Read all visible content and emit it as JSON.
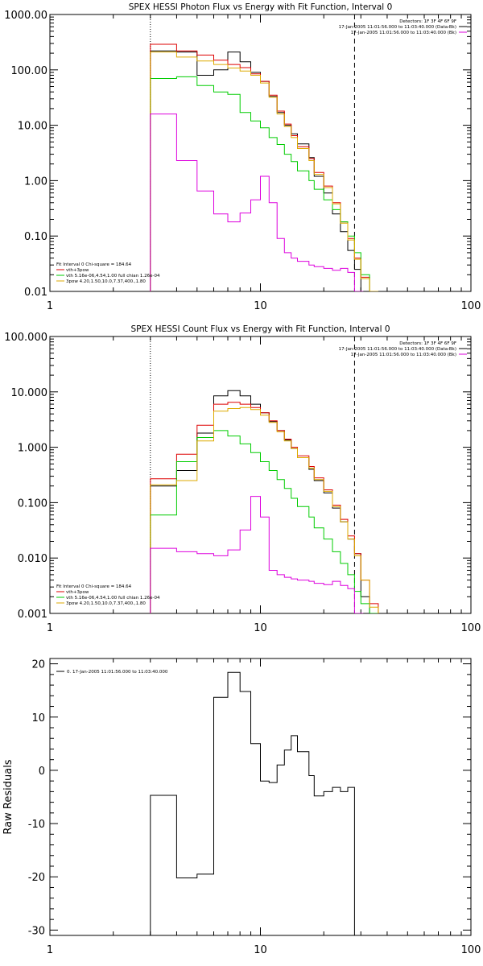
{
  "chart_data": [
    {
      "type": "line",
      "title": "SPEX HESSI Photon Flux vs Energy with Fit Function, Interval 0",
      "xlabel": "",
      "ylabel": "",
      "xscale": "log",
      "yscale": "log",
      "xlim": [
        1,
        100
      ],
      "ylim": [
        0.01,
        1000
      ],
      "xtick_labels": [
        "1",
        "10",
        "100"
      ],
      "ytick_labels": [
        "0.01",
        "0.10",
        "1.00",
        "10.00",
        "100.00",
        "1000.00"
      ],
      "header_text": [
        "Detectors: 1F 3F 4F 6F 9F",
        "17-Jan-2005 11:01:56.000 to 11:03:40.000 (Data-Bk)",
        "17-Jan-2005 11:01:56.000 to 11:03:40.000 (Bk)"
      ],
      "fit_text": "Fit Interval 0   Chi-square = 184.64",
      "legend": [
        "vth+3pow",
        "vth 5.16e-06,4.54,1.00  full chian 1.26e-04",
        "3pow 4.20,1.50,10.0,7.37,400.,1.80"
      ],
      "vlines": [
        {
          "x": 3,
          "style": "dotted"
        },
        {
          "x": 28,
          "style": "dashed"
        }
      ],
      "series": [
        {
          "name": "Data-Bk",
          "color": "#000000",
          "x": [
            3,
            4,
            5,
            6,
            7,
            8,
            9,
            10,
            11,
            12,
            13,
            14,
            15,
            17,
            18,
            20,
            22,
            24,
            26,
            28,
            30
          ],
          "values": [
            220,
            210,
            80,
            100,
            210,
            140,
            90,
            62,
            33,
            17,
            10,
            7.0,
            4.6,
            2.6,
            1.2,
            0.6,
            0.25,
            0.12,
            0.055,
            0.025,
            0.01
          ]
        },
        {
          "name": "vth+3pow",
          "color": "#dd0000",
          "x": [
            3,
            4,
            5,
            6,
            7,
            8,
            9,
            10,
            11,
            12,
            13,
            14,
            15,
            17,
            18,
            20,
            22,
            24,
            26,
            28,
            30,
            33
          ],
          "values": [
            290,
            220,
            185,
            150,
            125,
            110,
            85,
            62,
            35,
            18,
            10.5,
            6.5,
            4.1,
            2.5,
            1.4,
            0.8,
            0.4,
            0.18,
            0.09,
            0.04,
            0.018,
            0.01
          ]
        },
        {
          "name": "vth",
          "color": "#00cc00",
          "x": [
            3,
            4,
            5,
            6,
            7,
            8,
            9,
            10,
            11,
            12,
            13,
            14,
            15,
            17,
            18,
            20,
            22,
            24,
            26,
            28,
            30,
            33
          ],
          "values": [
            70,
            75,
            52,
            40,
            36,
            17,
            12,
            9,
            6,
            4.5,
            3.0,
            2.2,
            1.5,
            1.0,
            0.7,
            0.45,
            0.3,
            0.18,
            0.1,
            0.05,
            0.02,
            0.01
          ]
        },
        {
          "name": "3pow",
          "color": "#ddaa00",
          "x": [
            3,
            4,
            5,
            6,
            7,
            8,
            9,
            10,
            11,
            12,
            13,
            14,
            15,
            17,
            18,
            20,
            22,
            24,
            26,
            28,
            30,
            33
          ],
          "values": [
            210,
            170,
            145,
            125,
            108,
            95,
            80,
            58,
            32,
            16,
            9.5,
            6.0,
            3.8,
            2.3,
            1.3,
            0.75,
            0.38,
            0.17,
            0.085,
            0.038,
            0.017,
            0.01
          ]
        },
        {
          "name": "Bk",
          "color": "#dd00dd",
          "x": [
            3,
            4,
            5,
            6,
            7,
            8,
            9,
            10,
            11,
            12,
            13,
            14,
            15,
            17,
            18,
            20,
            22,
            24,
            26,
            28
          ],
          "values": [
            16,
            2.3,
            0.65,
            0.25,
            0.18,
            0.26,
            0.45,
            1.2,
            0.4,
            0.09,
            0.05,
            0.04,
            0.035,
            0.03,
            0.028,
            0.026,
            0.024,
            0.026,
            0.022,
            0.01
          ]
        }
      ]
    },
    {
      "type": "line",
      "title": "SPEX HESSI Count Flux vs Energy with Fit Function, Interval 0",
      "xlabel": "",
      "ylabel": "",
      "xscale": "log",
      "yscale": "log",
      "xlim": [
        1,
        100
      ],
      "ylim": [
        0.001,
        100
      ],
      "xtick_labels": [
        "1",
        "10",
        "100"
      ],
      "ytick_labels": [
        "0.001",
        "0.010",
        "0.100",
        "1.000",
        "10.000",
        "100.000"
      ],
      "header_text": [
        "Detectors: 1F 3F 4F 6F 9F",
        "17-Jan-2005 11:01:56.000 to 11:03:40.000 (Data-Bk)",
        "17-Jan-2005 11:01:56.000 to 11:03:40.000 (Bk)"
      ],
      "fit_text": "Fit Interval 0   Chi-square = 184.64",
      "legend": [
        "vth+3pow",
        "vth 5.16e-06,4.54,1.00  full chian 1.26e-04",
        "3pow 4.20,1.50,10.0,7.37,400.,1.80"
      ],
      "vlines": [
        {
          "x": 3,
          "style": "dotted"
        },
        {
          "x": 28,
          "style": "dashed"
        }
      ],
      "series": [
        {
          "name": "Data-Bk",
          "color": "#000000",
          "x": [
            3,
            4,
            5,
            6,
            7,
            8,
            9,
            10,
            11,
            12,
            13,
            14,
            15,
            17,
            18,
            20,
            22,
            24,
            26,
            28,
            30
          ],
          "values": [
            0.2,
            0.38,
            1.8,
            8.5,
            10.5,
            8.5,
            6.0,
            4.2,
            2.9,
            2.0,
            1.35,
            0.95,
            0.65,
            0.4,
            0.25,
            0.15,
            0.08,
            0.045,
            0.022,
            0.012,
            0.002
          ]
        },
        {
          "name": "vth+3pow",
          "color": "#dd0000",
          "x": [
            3,
            4,
            5,
            6,
            7,
            8,
            9,
            10,
            11,
            12,
            13,
            14,
            15,
            17,
            18,
            20,
            22,
            24,
            26,
            28,
            30,
            33
          ],
          "values": [
            0.27,
            0.75,
            2.5,
            6.0,
            6.5,
            6.0,
            5.2,
            4.2,
            3.0,
            2.0,
            1.4,
            1.0,
            0.7,
            0.45,
            0.28,
            0.17,
            0.09,
            0.05,
            0.025,
            0.012,
            0.004,
            0.0015
          ]
        },
        {
          "name": "vth",
          "color": "#00cc00",
          "x": [
            3,
            4,
            5,
            6,
            7,
            8,
            9,
            10,
            11,
            12,
            13,
            14,
            15,
            17,
            18,
            20,
            22,
            24,
            26,
            28,
            30,
            33
          ],
          "values": [
            0.06,
            0.55,
            1.5,
            2.0,
            1.6,
            1.15,
            0.8,
            0.55,
            0.38,
            0.26,
            0.18,
            0.12,
            0.085,
            0.055,
            0.035,
            0.022,
            0.013,
            0.008,
            0.005,
            0.0025,
            0.0015,
            0.001
          ]
        },
        {
          "name": "3pow",
          "color": "#ddaa00",
          "x": [
            3,
            4,
            5,
            6,
            7,
            8,
            9,
            10,
            11,
            12,
            13,
            14,
            15,
            17,
            18,
            20,
            22,
            24,
            26,
            28,
            30,
            33
          ],
          "values": [
            0.21,
            0.25,
            1.3,
            4.5,
            5.0,
            5.2,
            4.8,
            3.8,
            2.8,
            1.9,
            1.3,
            0.95,
            0.65,
            0.42,
            0.26,
            0.16,
            0.085,
            0.045,
            0.022,
            0.011,
            0.004,
            0.0013
          ]
        },
        {
          "name": "Bk",
          "color": "#dd00dd",
          "x": [
            3,
            4,
            5,
            6,
            7,
            8,
            9,
            10,
            11,
            12,
            13,
            14,
            15,
            17,
            18,
            20,
            22,
            24,
            26,
            28
          ],
          "values": [
            0.015,
            0.013,
            0.012,
            0.011,
            0.014,
            0.032,
            0.13,
            0.055,
            0.006,
            0.005,
            0.0045,
            0.0042,
            0.004,
            0.0038,
            0.0035,
            0.0033,
            0.0038,
            0.0032,
            0.0028,
            0.001
          ]
        }
      ]
    },
    {
      "type": "line",
      "title": "",
      "xlabel": "",
      "ylabel": "Raw Residuals",
      "xscale": "log",
      "yscale": "linear",
      "xlim": [
        1,
        100
      ],
      "ylim": [
        -31,
        21
      ],
      "xtick_labels": [
        "1",
        "10",
        "100"
      ],
      "yticks": [
        -30,
        -20,
        -10,
        0,
        10,
        20
      ],
      "legend": [
        "0. 17-Jan-2005 11:01:56.000 to 11:03:40.000"
      ],
      "series": [
        {
          "name": "0. 17-Jan-2005 11:01:56.000 to 11:03:40.000",
          "color": "#000000",
          "x": [
            3,
            4,
            5,
            6,
            7,
            8,
            9,
            10,
            11,
            12,
            13,
            14,
            15,
            17,
            18,
            20,
            22,
            24,
            26,
            28
          ],
          "values": [
            -4.7,
            -20.2,
            -19.5,
            13.7,
            18.4,
            14.8,
            5.0,
            -2.0,
            -2.3,
            1.0,
            3.8,
            6.5,
            3.5,
            -1.0,
            -4.8,
            -4.0,
            -3.2,
            -4.0,
            -3.2,
            -31
          ]
        }
      ]
    }
  ]
}
